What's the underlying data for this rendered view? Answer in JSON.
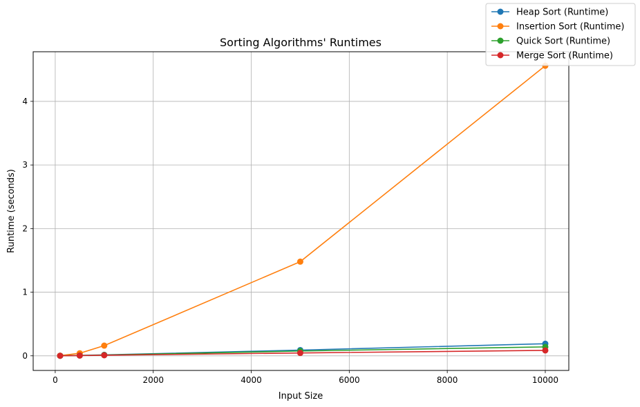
{
  "chart_data": {
    "type": "line",
    "title": "Sorting Algorithms' Runtimes",
    "xlabel": "Input Size",
    "ylabel": "Runtime (seconds)",
    "xlim": [
      -450,
      10480
    ],
    "ylim": [
      -0.23,
      4.78
    ],
    "xticks": [
      0,
      2000,
      4000,
      6000,
      8000,
      10000
    ],
    "xtick_labels": [
      "0",
      "2000",
      "4000",
      "6000",
      "8000",
      "10000"
    ],
    "yticks": [
      0,
      1,
      2,
      3,
      4
    ],
    "ytick_labels": [
      "0",
      "1",
      "2",
      "3",
      "4"
    ],
    "grid": true,
    "legend_position": "top-right",
    "x": [
      100,
      500,
      1000,
      5000,
      10000
    ],
    "series": [
      {
        "name": "Heap Sort (Runtime)",
        "color": "#1f77b4",
        "values": [
          0.001,
          0.006,
          0.015,
          0.09,
          0.19
        ]
      },
      {
        "name": "Insertion Sort (Runtime)",
        "color": "#ff7f0e",
        "values": [
          0.002,
          0.04,
          0.16,
          1.48,
          4.56
        ]
      },
      {
        "name": "Quick Sort (Runtime)",
        "color": "#2ca02c",
        "values": [
          0.001,
          0.005,
          0.012,
          0.075,
          0.14
        ]
      },
      {
        "name": "Merge Sort (Runtime)",
        "color": "#d62728",
        "values": [
          0.001,
          0.004,
          0.009,
          0.045,
          0.085
        ]
      }
    ]
  }
}
